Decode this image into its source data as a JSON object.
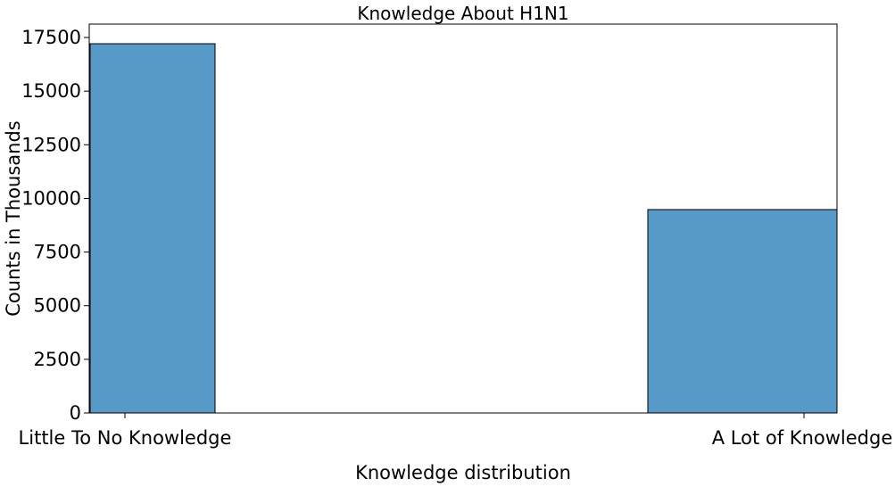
{
  "chart_data": {
    "type": "bar",
    "title": "Knowledge About H1N1",
    "xlabel": "Knowledge distribution",
    "ylabel": "Counts in Thousands",
    "categories": [
      "Little To No Knowledge",
      "A Lot of Knowledge"
    ],
    "values": [
      17210,
      9480
    ],
    "ylim": [
      0,
      18125
    ],
    "yticks": [
      0,
      2500,
      5000,
      7500,
      10000,
      12500,
      15000,
      17500
    ],
    "ytick_labels": [
      "0",
      "2500",
      "5000",
      "7500",
      "10000",
      "12500",
      "15000",
      "17500"
    ],
    "grid": false,
    "bar_color": "#5799c7",
    "edge_color": "#000000"
  }
}
